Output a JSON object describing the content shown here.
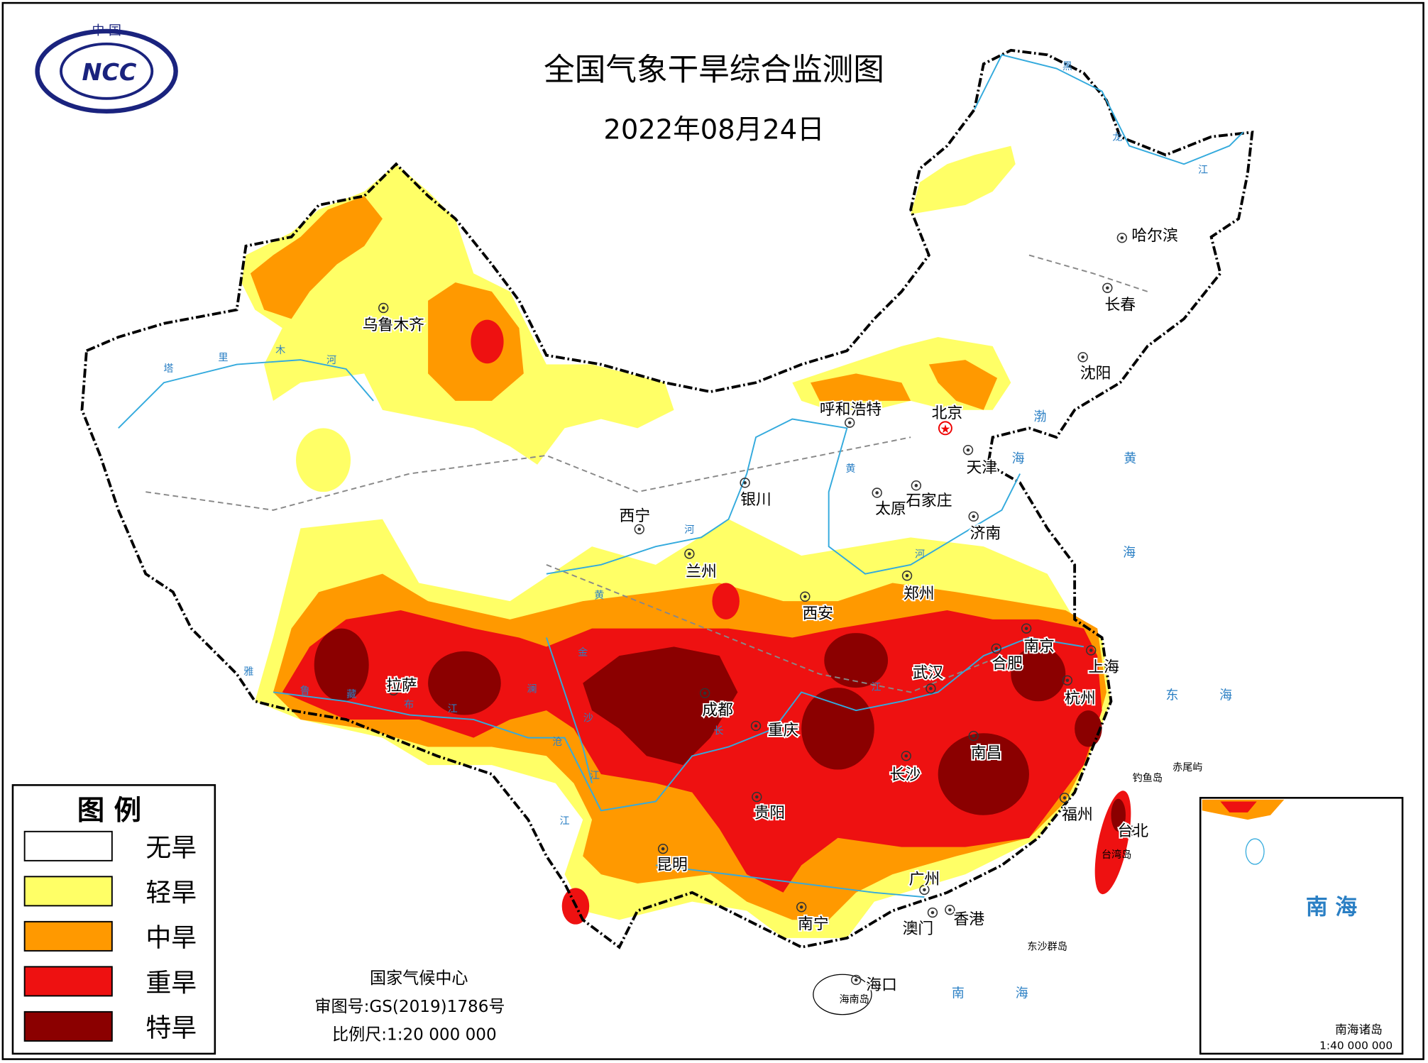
{
  "header": {
    "logo_top": "中 国",
    "logo_text": "NCC",
    "title": "全国气象干旱综合监测图",
    "date": "2022年08月24日"
  },
  "legend": {
    "title": "图 例",
    "items": [
      {
        "label": "无旱",
        "color": "#ffffff"
      },
      {
        "label": "轻旱",
        "color": "#ffff66"
      },
      {
        "label": "中旱",
        "color": "#ff9900"
      },
      {
        "label": "重旱",
        "color": "#ee1111"
      },
      {
        "label": "特旱",
        "color": "#8b0000"
      }
    ]
  },
  "cities": [
    "乌鲁木齐",
    "呼和浩特",
    "北京",
    "天津",
    "银川",
    "石家庄",
    "太原",
    "西宁",
    "济南",
    "兰州",
    "郑州",
    "西安",
    "南京",
    "合肥",
    "上海",
    "武汉",
    "拉萨",
    "成都",
    "杭州",
    "重庆",
    "南昌",
    "长沙",
    "福州",
    "贵阳",
    "台北",
    "昆明",
    "广州",
    "南宁",
    "澳门",
    "香港",
    "海口",
    "长春",
    "沈阳",
    "哈尔滨"
  ],
  "rivers": [
    "塔",
    "里",
    "木",
    "河",
    "黄",
    "河",
    "黄",
    "河",
    "长",
    "江",
    "雅",
    "鲁",
    "藏",
    "布",
    "江",
    "澜",
    "沧",
    "江",
    "金",
    "沙",
    "江",
    "黑",
    "龙",
    "江"
  ],
  "seas": [
    "渤",
    "海",
    "黄",
    "海",
    "东",
    "海",
    "南",
    "海"
  ],
  "islands": [
    "赤尾屿",
    "钓鱼岛",
    "台湾岛",
    "东沙群岛",
    "海南岛"
  ],
  "footer": {
    "org": "国家气候中心",
    "approval": "审图号:GS(2019)1786号",
    "scale": "比例尺:1:20 000 000"
  },
  "inset": {
    "title": "南 海",
    "label": "南海诸岛",
    "scale": "1:40 000 000"
  }
}
